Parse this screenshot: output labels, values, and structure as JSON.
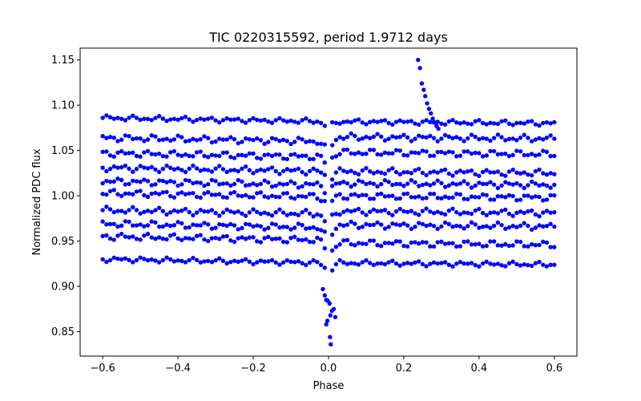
{
  "chart_data": {
    "type": "scatter",
    "title": "TIC 0220315592, period 1.9712 days",
    "xlabel": "Phase",
    "ylabel": "Normalized PDC flux",
    "xlim": [
      -0.66,
      0.66
    ],
    "ylim": [
      0.823,
      1.163
    ],
    "xticks": [
      -0.6,
      -0.4,
      -0.2,
      0.0,
      0.2,
      0.4,
      0.6
    ],
    "xtick_labels": [
      "−0.6",
      "−0.4",
      "−0.2",
      "0.0",
      "0.2",
      "0.4",
      "0.6"
    ],
    "yticks": [
      0.85,
      0.9,
      0.95,
      1.0,
      1.05,
      1.1,
      1.15
    ],
    "ytick_labels": [
      "0.85",
      "0.90",
      "0.95",
      "1.00",
      "1.05",
      "1.10",
      "1.15"
    ],
    "grid": false,
    "marker_color": "#0000ff",
    "phase_range": [
      -0.6,
      0.6
    ],
    "phase_step": 0.01,
    "bands": [
      {
        "left": 1.086,
        "right": 1.08,
        "slope": -0.006,
        "amp": 0.003
      },
      {
        "left": 1.064,
        "right": 1.063,
        "slope": -0.012,
        "amp": 0.004
      },
      {
        "left": 1.047,
        "right": 1.046,
        "slope": -0.01,
        "amp": 0.004
      },
      {
        "left": 1.031,
        "right": 1.025,
        "slope": -0.009,
        "amp": 0.004
      },
      {
        "left": 1.016,
        "right": 1.012,
        "slope": -0.009,
        "amp": 0.004
      },
      {
        "left": 1.003,
        "right": 0.998,
        "slope": -0.009,
        "amp": 0.004
      },
      {
        "left": 0.984,
        "right": 0.981,
        "slope": -0.012,
        "amp": 0.004
      },
      {
        "left": 0.969,
        "right": 0.966,
        "slope": -0.014,
        "amp": 0.004
      },
      {
        "left": 0.955,
        "right": 0.946,
        "slope": -0.014,
        "amp": 0.004
      },
      {
        "left": 0.93,
        "right": 0.924,
        "slope": -0.01,
        "amp": 0.003
      }
    ],
    "dip": {
      "center": 0.0,
      "halfwidth": 0.025
    },
    "transit_points": [
      {
        "x": -0.015,
        "y": 0.897
      },
      {
        "x": -0.01,
        "y": 0.89
      },
      {
        "x": -0.006,
        "y": 0.885
      },
      {
        "x": -0.002,
        "y": 0.884
      },
      {
        "x": 0.003,
        "y": 0.881
      },
      {
        "x": 0.009,
        "y": 0.873
      },
      {
        "x": 0.014,
        "y": 0.875
      },
      {
        "x": 0.018,
        "y": 0.866
      },
      {
        "x": -0.006,
        "y": 0.858
      },
      {
        "x": -0.003,
        "y": 0.862
      },
      {
        "x": 0.004,
        "y": 0.844
      },
      {
        "x": 0.006,
        "y": 0.836
      },
      {
        "x": 0.005,
        "y": 0.868
      }
    ],
    "flare_points": [
      {
        "x": 0.238,
        "y": 1.15
      },
      {
        "x": 0.243,
        "y": 1.141
      },
      {
        "x": 0.248,
        "y": 1.124
      },
      {
        "x": 0.253,
        "y": 1.117
      },
      {
        "x": 0.257,
        "y": 1.11
      },
      {
        "x": 0.262,
        "y": 1.102
      },
      {
        "x": 0.267,
        "y": 1.096
      },
      {
        "x": 0.272,
        "y": 1.091
      },
      {
        "x": 0.277,
        "y": 1.085
      },
      {
        "x": 0.282,
        "y": 1.081
      },
      {
        "x": 0.287,
        "y": 1.077
      },
      {
        "x": 0.292,
        "y": 1.074
      }
    ]
  }
}
